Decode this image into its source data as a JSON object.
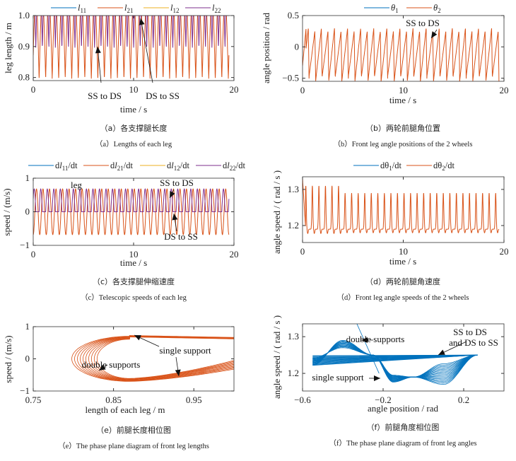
{
  "chart_data": [
    {
      "id": "a",
      "type": "line",
      "legend": [
        {
          "pre": "",
          "var": "l",
          "sub": "11",
          "post": "",
          "color": "#0072BD"
        },
        {
          "pre": "",
          "var": "l",
          "sub": "21",
          "post": "",
          "color": "#D95319"
        },
        {
          "pre": "",
          "var": "l",
          "sub": "12",
          "post": "",
          "color": "#EDB120"
        },
        {
          "pre": "",
          "var": "l",
          "sub": "22",
          "post": "",
          "color": "#7E2F8E"
        }
      ],
      "xlabel": "time / s",
      "ylabel": "leg length / m",
      "xlim": [
        0,
        20
      ],
      "ylim": [
        0.79,
        1.0
      ],
      "xticks": [
        "0",
        "10",
        "20"
      ],
      "yticks": [
        "0.8",
        "0.9",
        "1.0"
      ],
      "series_summary": {
        "period_s": 0.65,
        "t_end": 19.5,
        "l21_range": [
          0.8,
          1.0
        ],
        "l22_range": [
          0.9,
          1.0
        ]
      },
      "annotations": [
        "SS to DS",
        "DS to SS"
      ],
      "caption_cn": "（a）各支撑腿长度",
      "caption_en": "（a）Lengths of each leg"
    },
    {
      "id": "b",
      "type": "line",
      "legend": [
        {
          "pre": "",
          "var": "θ",
          "sub": "1",
          "post": "",
          "color": "#0072BD"
        },
        {
          "pre": "",
          "var": "θ",
          "sub": "2",
          "post": "",
          "color": "#D95319"
        }
      ],
      "xlabel": "time / s",
      "ylabel": "angle position / rad",
      "xlim": [
        0,
        20
      ],
      "ylim": [
        -0.55,
        0.5
      ],
      "xticks": [
        "0",
        "10",
        "20"
      ],
      "yticks": [
        "−0.5",
        "0",
        "0.5"
      ],
      "series_summary": {
        "period_s": 0.65,
        "t_end": 19.5,
        "range": [
          -0.55,
          0.3
        ]
      },
      "annotations": [
        "SS to DS"
      ],
      "caption_cn": "（b）两轮前腿角位置",
      "caption_en": "（b）Front leg angle positions of the 2 wheels"
    },
    {
      "id": "c",
      "type": "line",
      "legend": [
        {
          "pre": "d",
          "var": "l",
          "sub": "11",
          "post": "/dt",
          "color": "#0072BD"
        },
        {
          "pre": "d",
          "var": "l",
          "sub": "21",
          "post": "/dt",
          "color": "#D95319"
        },
        {
          "pre": "d",
          "var": "l",
          "sub": "12",
          "post": "/dt",
          "color": "#EDB120"
        },
        {
          "pre": "d",
          "var": "l",
          "sub": "22",
          "post": "/dt",
          "color": "#7E2F8E"
        }
      ],
      "xlabel": "time / s",
      "ylabel": "speed / (m/s)",
      "xlim": [
        0,
        20
      ],
      "ylim": [
        -1,
        1
      ],
      "xticks": [
        "0",
        "10",
        "20"
      ],
      "yticks": [
        "−1",
        "0",
        "1"
      ],
      "series_summary": {
        "period_s": 0.65,
        "t_end": 19.5,
        "dl21_range": [
          -0.7,
          0.7
        ],
        "dl22_range": [
          0,
          0.7
        ]
      },
      "annotations": [
        "leg",
        "SS to DS",
        "DS to SS"
      ],
      "caption_cn": "（c）各支撑腿伸缩速度",
      "caption_en": "（c）Telescopic speeds of each leg"
    },
    {
      "id": "d",
      "type": "line",
      "legend": [
        {
          "pre": "dθ",
          "var": "",
          "sub": "1",
          "post": "/dt",
          "color": "#0072BD"
        },
        {
          "pre": "dθ",
          "var": "",
          "sub": "2",
          "post": "/dt",
          "color": "#D95319"
        }
      ],
      "xlabel": "time / s",
      "ylabel": "angle speed / ( rad / s )",
      "xlim": [
        0,
        20
      ],
      "ylim": [
        1.153,
        1.335
      ],
      "xticks": [
        "0",
        "10",
        "20"
      ],
      "yticks": [
        "1.2",
        "1.3"
      ],
      "series_summary": {
        "period_s": 0.65,
        "t_end": 19.5,
        "baseline": 1.19,
        "peak": 1.29
      },
      "annotations": [],
      "caption_cn": "（d）两轮前腿角速度",
      "caption_en": "（d）Front leg angle speeds of the 2 wheels"
    },
    {
      "id": "e",
      "type": "line",
      "legend": [],
      "xlabel": "length of each leg / m",
      "ylabel": "speed / (m/s)",
      "xlim": [
        0.75,
        1.0
      ],
      "ylim": [
        -1,
        1
      ],
      "xticks": [
        "0.75",
        "0.85",
        "0.95"
      ],
      "yticks": [
        "−1",
        "0",
        "1"
      ],
      "series_summary": {
        "x_min": 0.8,
        "speed_range": [
          -0.7,
          0.7
        ]
      },
      "annotations": [
        "single support",
        "double supports"
      ],
      "caption_cn": "（e）前腿长度相位图",
      "caption_en": "（e）The phase plane diagram of front leg lengths"
    },
    {
      "id": "f",
      "type": "line",
      "legend": [],
      "xlabel": "angle position / rad",
      "ylabel": "angle speed / ( rad / s )",
      "xlim": [
        -0.6,
        0.4
      ],
      "ylim": [
        1.152,
        1.335
      ],
      "xticks": [
        "−0.6",
        "−0.2",
        "0.2"
      ],
      "yticks": [
        "1.2",
        "1.3"
      ],
      "series_summary": {
        "x_range": [
          -0.55,
          0.27
        ],
        "speed_range": [
          1.16,
          1.3
        ]
      },
      "annotations": [
        "double supports",
        "SS to DS",
        "and DS to SS",
        "single support"
      ],
      "caption_cn": "（f）前腿角度相位图",
      "caption_en": "（f）The phase plane diagram of front leg angles"
    }
  ]
}
